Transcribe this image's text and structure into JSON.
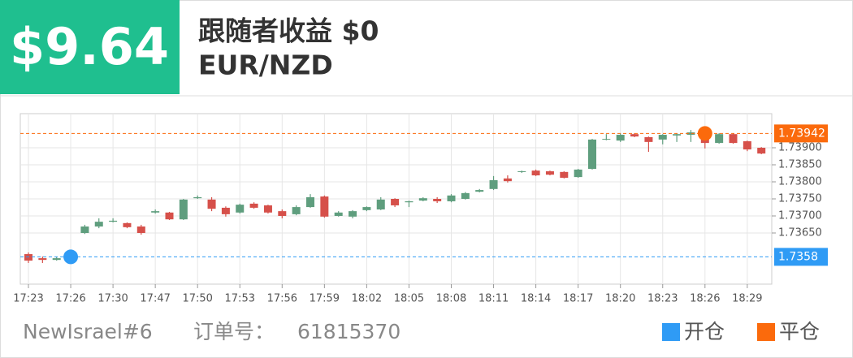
{
  "header": {
    "profit": "$9.64",
    "title": "跟随者收益 $0",
    "symbol": "EUR/NZD"
  },
  "footer": {
    "account": "NewIsrael#6",
    "order_label": "订单号：",
    "order_number": "61815370"
  },
  "chart_data": {
    "type": "candlestick",
    "categories": [
      "17:23",
      null,
      null,
      "17:26",
      null,
      null,
      "17:30",
      null,
      null,
      "17:47",
      null,
      null,
      "17:50",
      null,
      null,
      "17:53",
      null,
      null,
      "17:56",
      null,
      null,
      "17:59",
      null,
      null,
      "18:02",
      null,
      null,
      "18:05",
      null,
      null,
      "18:08",
      null,
      null,
      "18:11",
      null,
      null,
      "18:14",
      null,
      null,
      "18:17",
      null,
      null,
      "18:20",
      null,
      null,
      "18:23",
      null,
      null,
      "18:26",
      null,
      null,
      "18:29",
      null
    ],
    "open": [
      1.73588,
      1.73576,
      1.73571,
      1.73576,
      1.7365,
      1.73669,
      1.73683,
      1.73679,
      1.73669,
      1.7371,
      1.7371,
      1.7369,
      1.73752,
      1.73748,
      1.73724,
      1.7371,
      1.73736,
      1.73731,
      1.73714,
      1.73705,
      1.73726,
      1.73757,
      1.737,
      1.73698,
      1.73717,
      1.73719,
      1.7375,
      1.7374,
      1.73745,
      1.7375,
      1.73743,
      1.7375,
      1.73771,
      1.73779,
      1.7381,
      1.73829,
      1.73833,
      1.73831,
      1.73829,
      1.73814,
      1.73838,
      1.73924,
      1.73921,
      1.7394,
      1.73931,
      1.73924,
      1.73936,
      1.73938,
      1.73945,
      1.73914,
      1.7394,
      1.73919,
      1.739
    ],
    "high": [
      1.73593,
      1.73581,
      1.73581,
      1.73581,
      1.73674,
      1.73693,
      1.73693,
      1.73681,
      1.73674,
      1.73719,
      1.73712,
      1.7375,
      1.7376,
      1.73755,
      1.73728,
      1.73736,
      1.7374,
      1.73733,
      1.73719,
      1.73731,
      1.73764,
      1.7376,
      1.73714,
      1.73717,
      1.73728,
      1.73755,
      1.73752,
      1.73745,
      1.73755,
      1.73755,
      1.73764,
      1.7377,
      1.73779,
      1.73817,
      1.73819,
      1.73833,
      1.73836,
      1.73833,
      1.73831,
      1.73838,
      1.73926,
      1.7394,
      1.73943,
      1.73943,
      1.73933,
      1.7394,
      1.73943,
      1.73952,
      1.73952,
      1.73943,
      1.73943,
      1.73921,
      1.73902
    ],
    "low": [
      1.73562,
      1.73562,
      1.73569,
      1.73574,
      1.73647,
      1.73664,
      1.73681,
      1.73664,
      1.73645,
      1.73707,
      1.73688,
      1.73688,
      1.7375,
      1.73714,
      1.73698,
      1.73707,
      1.73721,
      1.73707,
      1.73693,
      1.73702,
      1.73724,
      1.73695,
      1.73698,
      1.73693,
      1.73714,
      1.73717,
      1.73726,
      1.73726,
      1.73743,
      1.73738,
      1.7374,
      1.73748,
      1.73769,
      1.73776,
      1.73798,
      1.73826,
      1.73817,
      1.73819,
      1.7381,
      1.73812,
      1.73836,
      1.73922,
      1.73917,
      1.73931,
      1.73888,
      1.7391,
      1.73917,
      1.73917,
      1.73898,
      1.73912,
      1.73912,
      1.7389,
      1.73881
    ],
    "close": [
      1.73569,
      1.73571,
      1.73576,
      1.73578,
      1.73669,
      1.73683,
      1.73686,
      1.73667,
      1.7365,
      1.73714,
      1.7369,
      1.73748,
      1.73755,
      1.73721,
      1.73705,
      1.73733,
      1.73724,
      1.7371,
      1.737,
      1.73726,
      1.73755,
      1.73698,
      1.7371,
      1.73714,
      1.73726,
      1.73748,
      1.73731,
      1.73743,
      1.73752,
      1.73743,
      1.7376,
      1.73767,
      1.73776,
      1.73805,
      1.73802,
      1.73831,
      1.73819,
      1.73821,
      1.73812,
      1.73836,
      1.73924,
      1.73926,
      1.73938,
      1.73933,
      1.73917,
      1.73938,
      1.7394,
      1.73945,
      1.73914,
      1.7394,
      1.73914,
      1.73895,
      1.73883
    ],
    "up_color": "#5f9e7e",
    "down_color": "#d6504a",
    "ylim": [
      1.735,
      1.74
    ],
    "yticks": [
      {
        "value": 1.7365,
        "label": "1.73650"
      },
      {
        "value": 1.737,
        "label": "1.73700"
      },
      {
        "value": 1.7375,
        "label": "1.73750"
      },
      {
        "value": 1.738,
        "label": "1.73800"
      },
      {
        "value": 1.7385,
        "label": "1.73850"
      },
      {
        "value": 1.739,
        "label": "1.73900"
      }
    ],
    "grid": true,
    "markers": [
      {
        "name": "开仓",
        "color": "#2f9bf5",
        "x": "17:26",
        "value": 1.7358
      },
      {
        "name": "平仓",
        "color": "#fb6a0c",
        "x": "18:26",
        "value": 1.73942
      }
    ]
  }
}
